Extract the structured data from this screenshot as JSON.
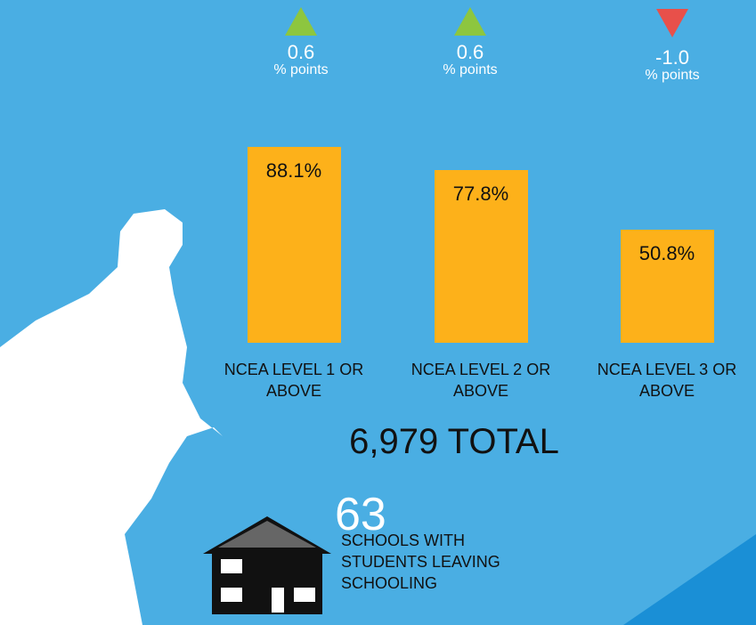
{
  "chart_data": {
    "type": "bar",
    "categories": [
      "NCEA LEVEL 1 OR ABOVE",
      "NCEA LEVEL 2 OR ABOVE",
      "NCEA LEVEL 3 OR ABOVE"
    ],
    "values": [
      88.1,
      77.8,
      50.8
    ],
    "value_labels": [
      "88.1%",
      "77.8%",
      "50.8%"
    ],
    "color": "#fdb11a",
    "ylim": [
      0,
      100
    ],
    "changes": {
      "values": [
        0.6,
        0.6,
        -1.0
      ],
      "value_labels": [
        "0.6",
        "0.6",
        "-1.0"
      ],
      "unit": "% points",
      "up_color": "#8dc63f",
      "down_color": "#e8504a"
    },
    "total": "6,979 TOTAL",
    "schools": {
      "count": "63",
      "lines": [
        "SCHOOLS WITH",
        "STUDENTS LEAVING",
        "SCHOOLING"
      ]
    }
  }
}
